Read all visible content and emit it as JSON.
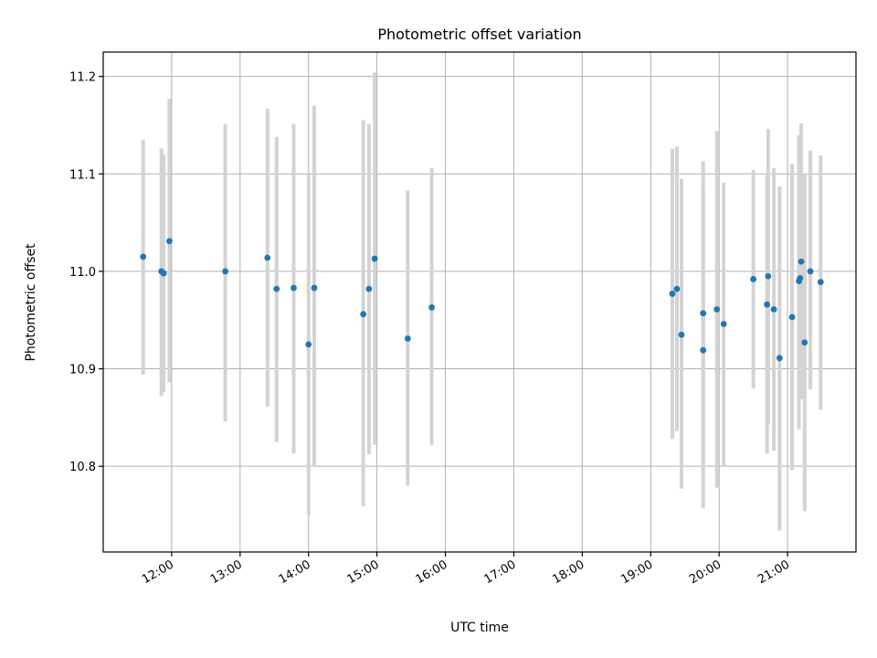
{
  "chart_data": {
    "type": "scatter",
    "title": "Photometric offset variation",
    "xlabel": "UTC time",
    "ylabel": "Photometric offset",
    "x_ticks": [
      "12:00",
      "13:00",
      "14:00",
      "15:00",
      "16:00",
      "17:00",
      "18:00",
      "19:00",
      "20:00",
      "21:00"
    ],
    "y_ticks": [
      "10.8",
      "10.9",
      "11.0",
      "11.1",
      "11.2"
    ],
    "xlim": [
      "11:00",
      "22:00"
    ],
    "ylim": [
      10.712,
      11.225
    ],
    "grid": true,
    "marker_color": "#1f77b4",
    "errorbar_color": "#d3d3d3",
    "series": [
      {
        "points": [
          {
            "x": "11:35",
            "y": 11.015,
            "ylo": 10.894,
            "yhi": 11.135
          },
          {
            "x": "11:51",
            "y": 11.0,
            "ylo": 10.872,
            "yhi": 11.126
          },
          {
            "x": "11:53",
            "y": 10.998,
            "ylo": 10.876,
            "yhi": 11.12
          },
          {
            "x": "11:58",
            "y": 11.031,
            "ylo": 10.886,
            "yhi": 11.177
          },
          {
            "x": "12:47",
            "y": 11.0,
            "ylo": 10.846,
            "yhi": 11.151
          },
          {
            "x": "13:24",
            "y": 11.014,
            "ylo": 10.861,
            "yhi": 11.167
          },
          {
            "x": "13:32",
            "y": 10.982,
            "ylo": 10.825,
            "yhi": 11.138
          },
          {
            "x": "13:47",
            "y": 10.983,
            "ylo": 10.813,
            "yhi": 11.151
          },
          {
            "x": "14:00",
            "y": 10.925,
            "ylo": 10.75,
            "yhi": 11.1
          },
          {
            "x": "14:05",
            "y": 10.983,
            "ylo": 10.799,
            "yhi": 11.17
          },
          {
            "x": "14:48",
            "y": 10.956,
            "ylo": 10.759,
            "yhi": 11.155
          },
          {
            "x": "14:53",
            "y": 10.982,
            "ylo": 10.812,
            "yhi": 11.151
          },
          {
            "x": "14:58",
            "y": 11.013,
            "ylo": 10.822,
            "yhi": 11.204
          },
          {
            "x": "15:27",
            "y": 10.931,
            "ylo": 10.78,
            "yhi": 11.083
          },
          {
            "x": "15:48",
            "y": 10.963,
            "ylo": 10.822,
            "yhi": 11.106
          },
          {
            "x": "19:19",
            "y": 10.977,
            "ylo": 10.828,
            "yhi": 11.126
          },
          {
            "x": "19:23",
            "y": 10.982,
            "ylo": 10.836,
            "yhi": 11.128
          },
          {
            "x": "19:27",
            "y": 10.935,
            "ylo": 10.777,
            "yhi": 11.095
          },
          {
            "x": "19:46",
            "y": 10.957,
            "ylo": 10.8,
            "yhi": 11.113
          },
          {
            "x": "19:46",
            "y": 10.919,
            "ylo": 10.757,
            "yhi": 11.085
          },
          {
            "x": "19:58",
            "y": 10.961,
            "ylo": 10.778,
            "yhi": 11.144
          },
          {
            "x": "20:04",
            "y": 10.946,
            "ylo": 10.8,
            "yhi": 11.091
          },
          {
            "x": "20:30",
            "y": 10.992,
            "ylo": 10.88,
            "yhi": 11.104
          },
          {
            "x": "20:42",
            "y": 10.966,
            "ylo": 10.813,
            "yhi": 11.1
          },
          {
            "x": "20:43",
            "y": 10.995,
            "ylo": 10.843,
            "yhi": 11.146
          },
          {
            "x": "20:48",
            "y": 10.961,
            "ylo": 10.816,
            "yhi": 11.106
          },
          {
            "x": "20:53",
            "y": 10.911,
            "ylo": 10.734,
            "yhi": 11.087
          },
          {
            "x": "21:04",
            "y": 10.953,
            "ylo": 10.796,
            "yhi": 11.11
          },
          {
            "x": "21:10",
            "y": 10.99,
            "ylo": 10.838,
            "yhi": 11.14
          },
          {
            "x": "21:11",
            "y": 10.993,
            "ylo": 10.87,
            "yhi": 11.115
          },
          {
            "x": "21:12",
            "y": 11.01,
            "ylo": 10.869,
            "yhi": 11.152
          },
          {
            "x": "21:15",
            "y": 10.927,
            "ylo": 10.754,
            "yhi": 11.1
          },
          {
            "x": "21:20",
            "y": 11.0,
            "ylo": 10.879,
            "yhi": 11.124
          },
          {
            "x": "21:29",
            "y": 10.989,
            "ylo": 10.858,
            "yhi": 11.119
          }
        ]
      }
    ]
  }
}
